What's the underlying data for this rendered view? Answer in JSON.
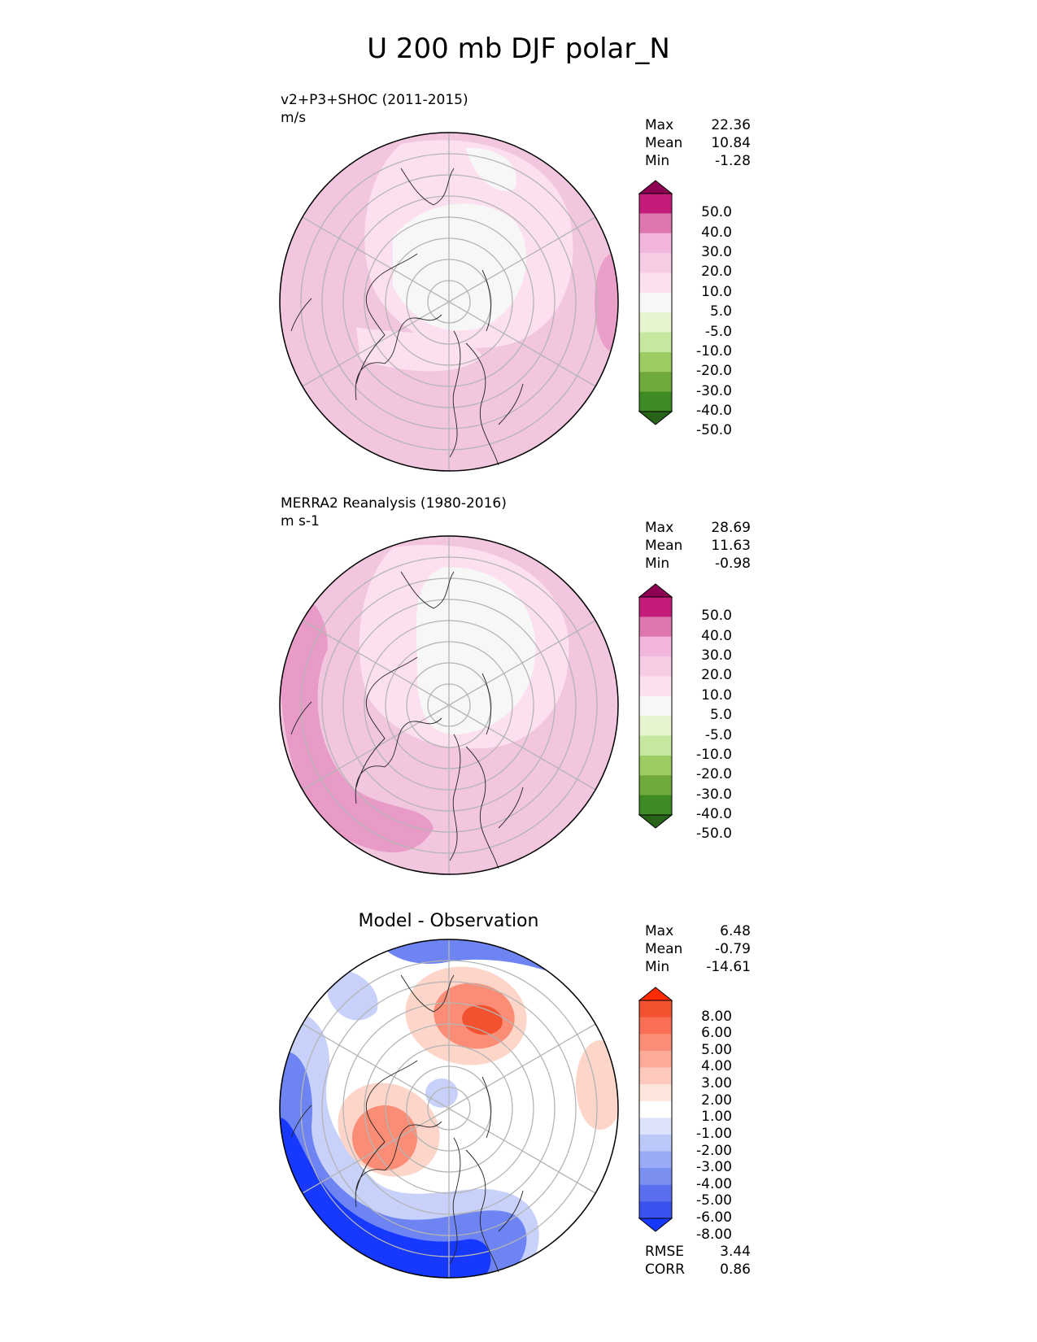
{
  "title": "U 200 mb DJF polar_N",
  "panels": [
    {
      "label_line1": "v2+P3+SHOC (2011-2015)",
      "label_line2": "m/s",
      "stats": [
        [
          "Max",
          "22.36"
        ],
        [
          "Mean",
          "10.84"
        ],
        [
          "Min",
          "-1.28"
        ]
      ],
      "colorbar": {
        "levels": [
          "50.0",
          "40.0",
          "30.0",
          "20.0",
          "10.0",
          "5.0",
          "-5.0",
          "-10.0",
          "-20.0",
          "-30.0",
          "-40.0",
          "-50.0"
        ],
        "colors": [
          "#8e0152",
          "#c51b7d",
          "#de77ae",
          "#f1b6da",
          "#f6cbe4",
          "#fde0ef",
          "#f7f7f7",
          "#e6f5d0",
          "#c7e6a0",
          "#9dcc62",
          "#6ea93b",
          "#3e8a24",
          "#276419"
        ]
      },
      "map": {
        "bg": "#f1c6de",
        "zones": [
          {
            "name": "white-core",
            "color": "#f7f7f7"
          },
          {
            "name": "light-pink",
            "color": "#fde0ef"
          },
          {
            "name": "mid-pink",
            "color": "#ea9fc9"
          }
        ]
      }
    },
    {
      "label_line1": "MERRA2 Reanalysis (1980-2016)",
      "label_line2": "m s-1",
      "stats": [
        [
          "Max",
          "28.69"
        ],
        [
          "Mean",
          "11.63"
        ],
        [
          "Min",
          "-0.98"
        ]
      ],
      "colorbar": {
        "levels": [
          "50.0",
          "40.0",
          "30.0",
          "20.0",
          "10.0",
          "5.0",
          "-5.0",
          "-10.0",
          "-20.0",
          "-30.0",
          "-40.0",
          "-50.0"
        ],
        "colors": [
          "#8e0152",
          "#c51b7d",
          "#de77ae",
          "#f1b6da",
          "#f6cbe4",
          "#fde0ef",
          "#f7f7f7",
          "#e6f5d0",
          "#c7e6a0",
          "#9dcc62",
          "#6ea93b",
          "#3e8a24",
          "#276419"
        ]
      },
      "map": {
        "bg": "#f1c6de",
        "zones": [
          {
            "name": "white-core",
            "color": "#f7f7f7"
          },
          {
            "name": "light-pink",
            "color": "#fde0ef"
          },
          {
            "name": "mid-pink",
            "color": "#e79bc6"
          }
        ]
      }
    },
    {
      "title": "Model - Observation",
      "stats": [
        [
          "Max",
          "6.48"
        ],
        [
          "Mean",
          "-0.79"
        ],
        [
          "Min",
          "-14.61"
        ]
      ],
      "colorbar": {
        "levels": [
          "8.00",
          "6.00",
          "5.00",
          "4.00",
          "3.00",
          "2.00",
          "1.00",
          "-1.00",
          "-2.00",
          "-3.00",
          "-4.00",
          "-5.00",
          "-6.00",
          "-8.00"
        ],
        "colors": [
          "#ff2a00",
          "#f2522f",
          "#f96e54",
          "#fb8d76",
          "#fcab99",
          "#fdc9bc",
          "#fde4dc",
          "#ffffff",
          "#dde3fb",
          "#bcc8f8",
          "#9aaaf4",
          "#7a8ff0",
          "#5a6ff0",
          "#3a52ee",
          "#1638ff"
        ]
      },
      "map": {
        "bg": "#ffffff",
        "zones": [
          {
            "name": "blue-strong",
            "color": "#1638ff"
          },
          {
            "name": "blue-mid",
            "color": "#6d84f2"
          },
          {
            "name": "blue-light",
            "color": "#c7d1f9"
          },
          {
            "name": "red-strong",
            "color": "#f2522f"
          },
          {
            "name": "red-mid",
            "color": "#fb8d76"
          },
          {
            "name": "red-light",
            "color": "#fdd5c9"
          }
        ]
      },
      "extra_stats": [
        [
          "RMSE",
          "3.44"
        ],
        [
          "CORR",
          "0.86"
        ]
      ]
    }
  ]
}
